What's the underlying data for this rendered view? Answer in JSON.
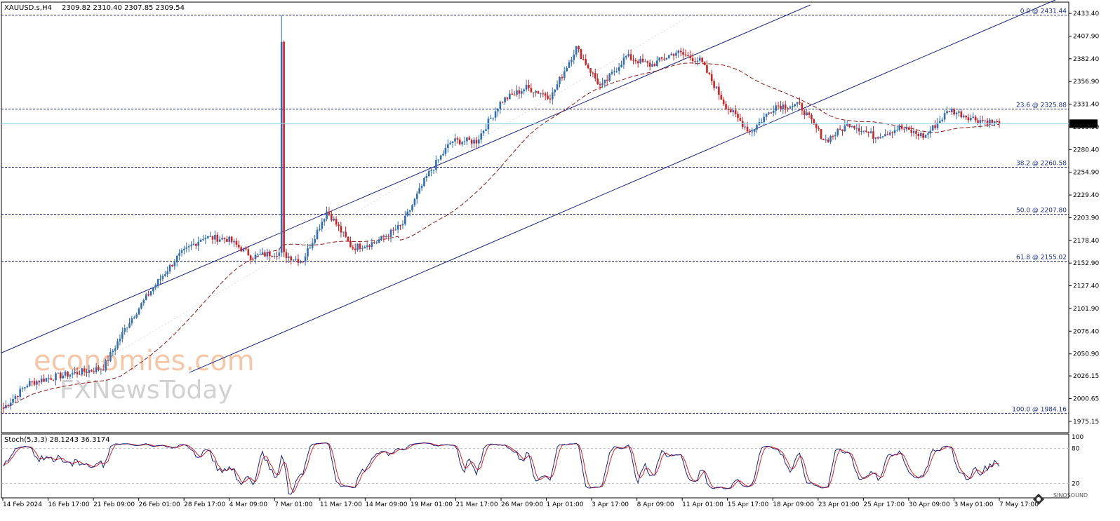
{
  "header": {
    "symbol": "XAUUSD.s,H4",
    "ohlc": "2309.82 2310.40 2307.85 2309.54"
  },
  "price_axis": {
    "ticks": [
      "2433.40",
      "2407.90",
      "2382.40",
      "2356.90",
      "2331.40",
      "2305.90",
      "2280.40",
      "2254.90",
      "2229.40",
      "2203.90",
      "2178.40",
      "2152.90",
      "2127.40",
      "2101.90",
      "2076.40",
      "2050.90",
      "2026.15",
      "2000.65",
      "1975.15"
    ],
    "current_price": "2309.54"
  },
  "fibonacci": [
    {
      "label": "0.0 @ 2431.44",
      "price": 2431.44
    },
    {
      "label": "23.6 @ 2325.88",
      "price": 2325.88
    },
    {
      "label": "38.2 @ 2260.58",
      "price": 2260.58
    },
    {
      "label": "50.0 @ 2207.80",
      "price": 2207.8
    },
    {
      "label": "61.8 @ 2155.02",
      "price": 2155.02
    },
    {
      "label": "100.0 @ 1984.16",
      "price": 1984.16
    }
  ],
  "time_axis": {
    "labels": [
      "14 Feb 2024",
      "16 Feb 17:00",
      "21 Feb 09:00",
      "26 Feb 01:00",
      "28 Feb 17:00",
      "4 Mar 09:00",
      "7 Mar 01:00",
      "11 Mar 17:00",
      "14 Mar 09:00",
      "19 Mar 01:00",
      "21 Mar 17:00",
      "26 Mar 09:00",
      "1 Apr 01:00",
      "3 Apr 17:00",
      "8 Apr 09:00",
      "11 Apr 01:00",
      "15 Apr 17:00",
      "18 Apr 09:00",
      "23 Apr 01:00",
      "25 Apr 17:00",
      "30 Apr 09:00",
      "3 May 01:00",
      "7 May 17:00"
    ]
  },
  "stochastic": {
    "label": "Stoch(5,3,3) 28.1243 36.3174",
    "levels": [
      "100",
      "80",
      "20"
    ]
  },
  "watermark": {
    "brand": "economies.com",
    "sub": "FXNewsToday"
  },
  "logo": {
    "text": "SINOSOUND"
  },
  "colors": {
    "bull": "#2f6db5",
    "bear": "#d42020",
    "channel": "#1a237e",
    "ma": "#8b1a1a",
    "stoch_main": "#1a237e",
    "stoch_signal": "#e02020",
    "current_line": "#8fd3e8"
  },
  "chart_data": {
    "type": "candlestick",
    "symbol": "XAUUSD.s",
    "timeframe": "H4",
    "x_range": [
      "14 Feb 2024",
      "8 May 2024"
    ],
    "y_range": [
      1962.4,
      2446.1
    ],
    "close_anchors": [
      {
        "t": "14 Feb 2024",
        "price": 1990
      },
      {
        "t": "16 Feb 17:00",
        "price": 2018
      },
      {
        "t": "21 Feb 09:00",
        "price": 2025
      },
      {
        "t": "26 Feb 01:00",
        "price": 2030
      },
      {
        "t": "28 Feb 17:00",
        "price": 2035
      },
      {
        "t": "1 Mar 2024",
        "price": 2085
      },
      {
        "t": "4 Mar 09:00",
        "price": 2125
      },
      {
        "t": "7 Mar 01:00",
        "price": 2160
      },
      {
        "t": "8 Mar 2024",
        "price": 2182
      },
      {
        "t": "11 Mar 17:00",
        "price": 2180
      },
      {
        "t": "12 Mar 2024",
        "price": 2160
      },
      {
        "t": "14 Mar 09:00",
        "price": 2165
      },
      {
        "t": "19 Mar 01:00",
        "price": 2155
      },
      {
        "t": "20 Mar 2024",
        "price": 2212
      },
      {
        "t": "21 Mar 17:00",
        "price": 2170
      },
      {
        "t": "26 Mar 09:00",
        "price": 2177
      },
      {
        "t": "28 Mar 2024",
        "price": 2195
      },
      {
        "t": "1 Apr 01:00",
        "price": 2250
      },
      {
        "t": "3 Apr 17:00",
        "price": 2290
      },
      {
        "t": "5 Apr 2024",
        "price": 2290
      },
      {
        "t": "8 Apr 09:00",
        "price": 2335
      },
      {
        "t": "9 Apr 2024",
        "price": 2350
      },
      {
        "t": "11 Apr 01:00",
        "price": 2340
      },
      {
        "t": "12 Apr 2024",
        "price": 2395
      },
      {
        "t": "12 Apr 2024 late",
        "price": 2350
      },
      {
        "t": "15 Apr 17:00",
        "price": 2385
      },
      {
        "t": "17 Apr 2024",
        "price": 2375
      },
      {
        "t": "18 Apr 09:00",
        "price": 2390
      },
      {
        "t": "19 Apr 2024",
        "price": 2380
      },
      {
        "t": "22 Apr 2024",
        "price": 2330
      },
      {
        "t": "23 Apr 01:00",
        "price": 2300
      },
      {
        "t": "25 Apr 17:00",
        "price": 2330
      },
      {
        "t": "29 Apr 2024",
        "price": 2330
      },
      {
        "t": "30 Apr 09:00",
        "price": 2290
      },
      {
        "t": "1 May 2024",
        "price": 2310
      },
      {
        "t": "2 May 2024",
        "price": 2295
      },
      {
        "t": "3 May 01:00",
        "price": 2305
      },
      {
        "t": "4 May 2024",
        "price": 2295
      },
      {
        "t": "6 May 2024",
        "price": 2325
      },
      {
        "t": "7 May 17:00",
        "price": 2315
      },
      {
        "t": "8 May 2024",
        "price": 2309.54
      }
    ],
    "extremes": {
      "high": 2431.44,
      "low": 1984.16
    },
    "moving_average": "dashed",
    "channel": "ascending parallel channel",
    "stochastic_overbought": 80,
    "stochastic_oversold": 20
  }
}
